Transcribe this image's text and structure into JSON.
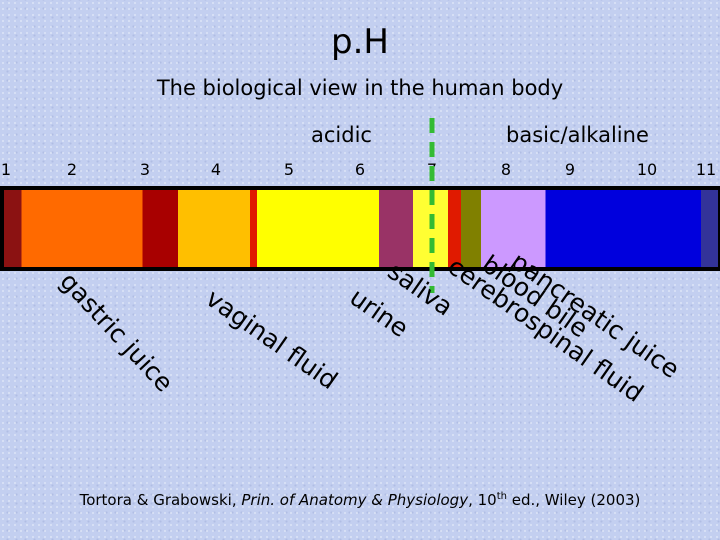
{
  "title": "p.H",
  "subtitle": "The biological view in the human body",
  "labels": {
    "acidic": "acidic",
    "basic": "basic/alkaline"
  },
  "scale_ticks": [
    "1",
    "2",
    "3",
    "4",
    "5",
    "6",
    "7",
    "8",
    "9",
    "10",
    "11"
  ],
  "ph_segments": [
    {
      "from": 1.0,
      "to": 1.25,
      "color": "#8b1212"
    },
    {
      "from": 1.25,
      "to": 2.95,
      "color": "#ff6a00"
    },
    {
      "from": 2.95,
      "to": 3.45,
      "color": "#a80000"
    },
    {
      "from": 3.45,
      "to": 4.45,
      "color": "#ffbf00"
    },
    {
      "from": 4.45,
      "to": 4.55,
      "color": "#e01a00"
    },
    {
      "from": 4.55,
      "to": 6.25,
      "color": "#ffff00"
    },
    {
      "from": 6.25,
      "to": 6.72,
      "color": "#993366"
    },
    {
      "from": 6.72,
      "to": 7.2,
      "color": "#ffff33"
    },
    {
      "from": 7.2,
      "to": 7.38,
      "color": "#e01a00"
    },
    {
      "from": 7.38,
      "to": 7.65,
      "color": "#808000"
    },
    {
      "from": 7.65,
      "to": 8.6,
      "color": "#cc99ff"
    },
    {
      "from": 8.6,
      "to": 10.9,
      "color": "#0000dd"
    },
    {
      "from": 10.9,
      "to": 11.9,
      "color": "#333399"
    }
  ],
  "neutral_marker": {
    "ph": 7,
    "color": "#33bb33"
  },
  "fluids": [
    {
      "text": "gastric juice",
      "ph": 1.0,
      "angle": 47
    },
    {
      "text": "vaginal fluid",
      "ph": 4.0,
      "angle": 35
    },
    {
      "text": "urine",
      "ph": 6.0,
      "angle": 35
    },
    {
      "text": "saliva",
      "ph": 6.5,
      "angle": 35
    },
    {
      "text": "cerebrospinal fluid",
      "ph": 7.3,
      "angle": 35
    },
    {
      "text": "blood bile",
      "ph": 7.6,
      "angle": 35
    },
    {
      "text": "pancreatic juice",
      "ph": 8.0,
      "angle": 35
    }
  ],
  "citation": {
    "before": "Tortora & Grabowski, ",
    "italic": "Prin. of Anatomy & Physiology",
    "edition": ", 10",
    "sup": "th",
    "after": " ed., Wiley (2003)"
  }
}
